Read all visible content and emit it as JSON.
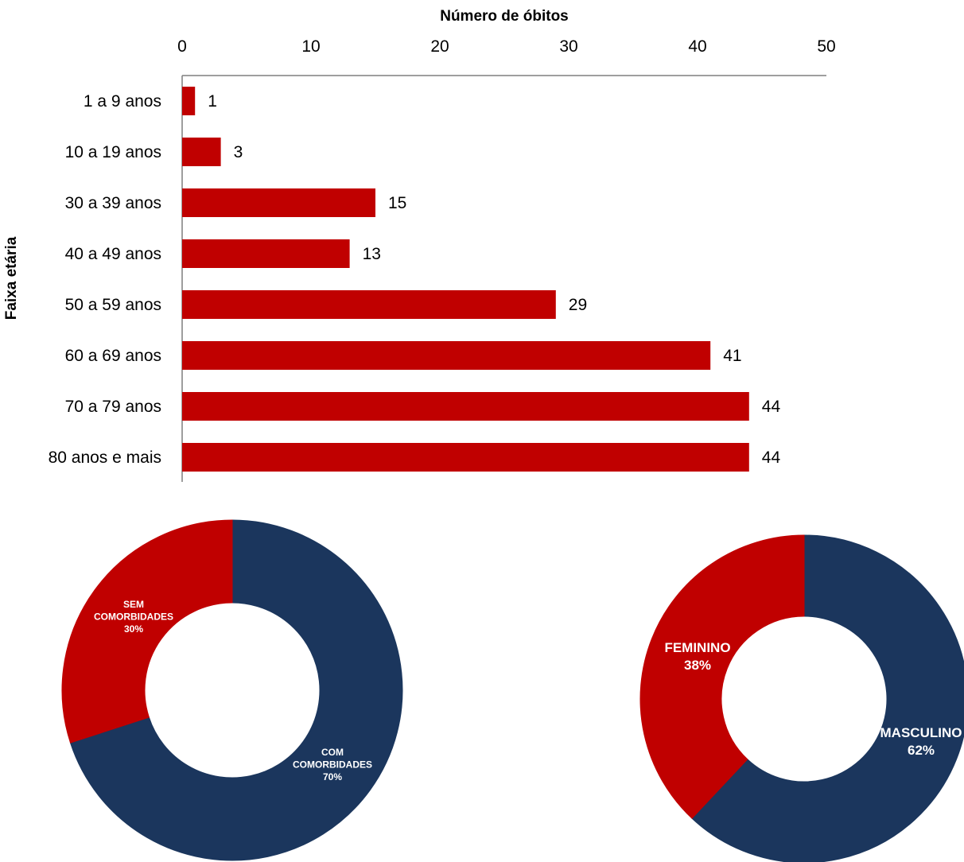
{
  "colors": {
    "bar": "#C00000",
    "red": "#C00000",
    "navy": "#1B365D",
    "axis": "#7f7f7f"
  },
  "chart_data": [
    {
      "type": "bar",
      "orientation": "horizontal",
      "xlabel": "Número de óbitos",
      "ylabel": "Faixa etária",
      "xlim": [
        0,
        50
      ],
      "xticks": [
        "0",
        "10",
        "20",
        "30",
        "40",
        "50"
      ],
      "categories": [
        "1 a 9 anos",
        "10 a 19 anos",
        "30 a 39 anos",
        "40 a 49 anos",
        "50 a 59 anos",
        "60 a 69 anos",
        "70 a 79 anos",
        "80 anos e mais"
      ],
      "values": [
        1,
        3,
        15,
        13,
        29,
        41,
        44,
        44
      ],
      "grid": false,
      "axis_position": "top"
    },
    {
      "type": "pie",
      "style": "donut",
      "slices": [
        {
          "label_lines": [
            "COM",
            "COMORBIDADES",
            "70%"
          ],
          "value": 70,
          "color": "#1B365D"
        },
        {
          "label_lines": [
            "SEM",
            "COMORBIDADES",
            "30%"
          ],
          "value": 30,
          "color": "#C00000"
        }
      ]
    },
    {
      "type": "pie",
      "style": "donut",
      "slices": [
        {
          "label_lines": [
            "MASCULINO",
            "62%"
          ],
          "value": 62,
          "color": "#1B365D"
        },
        {
          "label_lines": [
            "FEMININO",
            "38%"
          ],
          "value": 38,
          "color": "#C00000"
        }
      ]
    }
  ]
}
